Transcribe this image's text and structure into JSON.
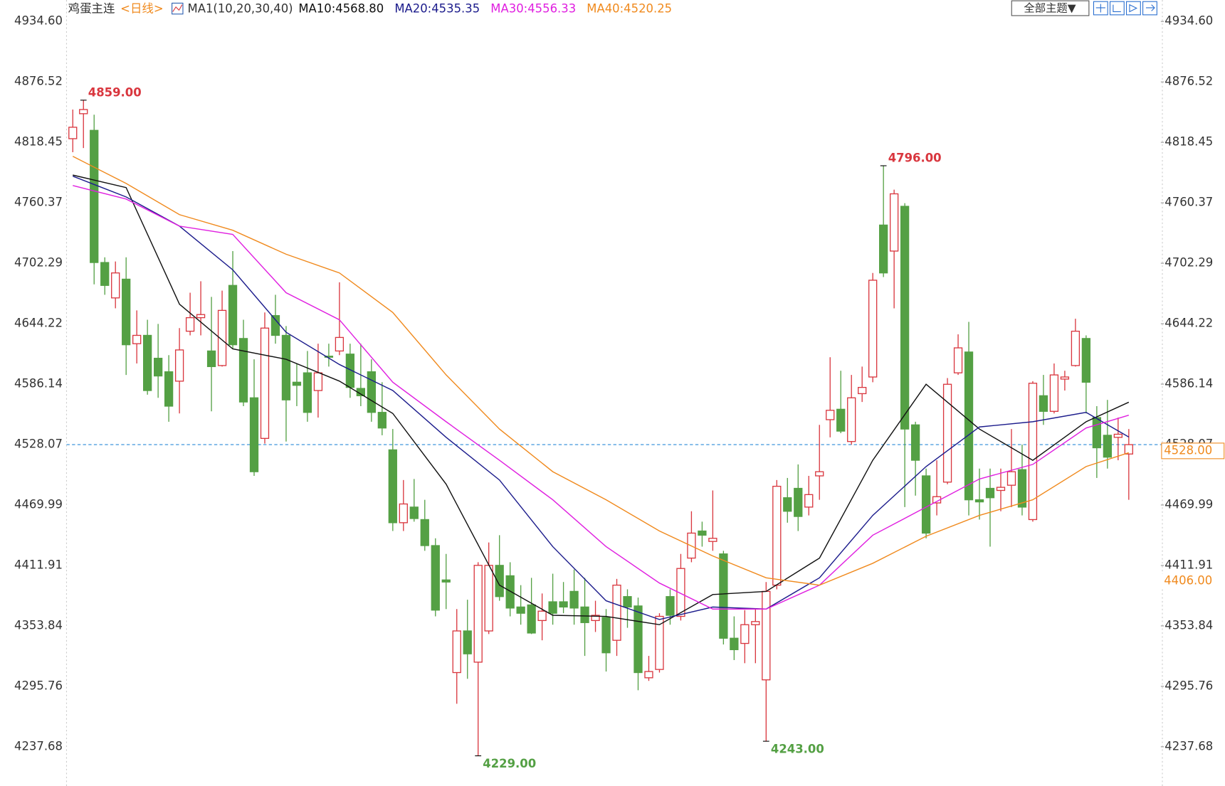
{
  "toolbar": {
    "theme_button": "全部主题▼"
  },
  "chart_data": {
    "type": "candlestick",
    "title": "鸡蛋主连",
    "period": "<日线>",
    "indicator": "MA1(10,20,30,40)",
    "up_color": "#d9363e",
    "down_color": "#54a044",
    "open": [
      4822,
      4846,
      4830,
      4703,
      4669,
      4687,
      4625,
      4633,
      4611,
      4598,
      4589,
      4637,
      4650,
      4618,
      4604,
      4681,
      4630,
      4573,
      4534,
      4652,
      4633,
      4588,
      4597,
      4580,
      4613,
      4618,
      4615,
      4582,
      4598,
      4559,
      4523,
      4453,
      4468,
      4456,
      4431,
      4398,
      4309,
      4349,
      4319,
      4349,
      4412,
      4402,
      4372,
      4374,
      4359,
      4377,
      4377,
      4387,
      4372,
      4359,
      4362,
      4340,
      4382,
      4373,
      4304,
      4312,
      4382,
      4363,
      4419,
      4445,
      4435,
      4423,
      4342,
      4337,
      4355,
      4302,
      4393,
      4477,
      4486,
      4468,
      4498,
      4552,
      4562,
      4531,
      4577,
      4593,
      4739,
      4714,
      4757,
      4547,
      4498,
      4472,
      4492,
      4597,
      4617,
      4475,
      4486,
      4484,
      4489,
      4504,
      4456,
      4575,
      4560,
      4591,
      4604,
      4630,
      4554,
      4537,
      4535,
      4519
    ],
    "high": [
      4850,
      4859,
      4845,
      4708,
      4704,
      4708,
      4657,
      4648,
      4644,
      4614,
      4640,
      4674,
      4685,
      4670,
      4676,
      4714,
      4648,
      4610,
      4655,
      4672,
      4642,
      4606,
      4618,
      4625,
      4625,
      4684,
      4625,
      4625,
      4610,
      4588,
      4543,
      4494,
      4495,
      4475,
      4438,
      4423,
      4370,
      4379,
      4415,
      4434,
      4441,
      4415,
      4393,
      4400,
      4385,
      4404,
      4396,
      4408,
      4400,
      4378,
      4370,
      4399,
      4389,
      4381,
      4325,
      4366,
      4389,
      4423,
      4464,
      4454,
      4484,
      4426,
      4363,
      4369,
      4370,
      4396,
      4494,
      4496,
      4509,
      4498,
      4547,
      4612,
      4599,
      4595,
      4603,
      4693,
      4796,
      4773,
      4760,
      4550,
      4505,
      4513,
      4592,
      4634,
      4646,
      4505,
      4505,
      4505,
      4543,
      4528,
      4589,
      4595,
      4606,
      4599,
      4649,
      4633,
      4565,
      4571,
      4554,
      4543
    ],
    "low": [
      4809,
      4813,
      4682,
      4672,
      4659,
      4595,
      4606,
      4576,
      4573,
      4550,
      4558,
      4633,
      4633,
      4560,
      4603,
      4620,
      4565,
      4498,
      4529,
      4625,
      4531,
      4565,
      4550,
      4554,
      4603,
      4614,
      4573,
      4565,
      4550,
      4537,
      4445,
      4445,
      4454,
      4426,
      4363,
      4370,
      4279,
      4303,
      4229,
      4346,
      4378,
      4363,
      4355,
      4346,
      4340,
      4355,
      4366,
      4355,
      4325,
      4348,
      4310,
      4325,
      4352,
      4292,
      4301,
      4309,
      4355,
      4359,
      4415,
      4430,
      4426,
      4336,
      4321,
      4318,
      4318,
      4243,
      4389,
      4453,
      4445,
      4460,
      4475,
      4535,
      4539,
      4528,
      4569,
      4588,
      4689,
      4659,
      4468,
      4479,
      4438,
      4460,
      4490,
      4595,
      4460,
      4456,
      4430,
      4464,
      4468,
      4460,
      4454,
      4547,
      4558,
      4580,
      4603,
      4558,
      4496,
      4505,
      4513,
      4475
    ],
    "close": [
      4833,
      4850,
      4703,
      4681,
      4693,
      4624,
      4633,
      4580,
      4594,
      4565,
      4619,
      4650,
      4653,
      4603,
      4657,
      4624,
      4569,
      4502,
      4640,
      4633,
      4571,
      4585,
      4559,
      4597,
      4612,
      4631,
      4583,
      4575,
      4559,
      4544,
      4453,
      4471,
      4457,
      4431,
      4369,
      4396,
      4349,
      4327,
      4412,
      4412,
      4382,
      4371,
      4366,
      4347,
      4368,
      4366,
      4372,
      4371,
      4357,
      4364,
      4328,
      4393,
      4372,
      4309,
      4310,
      4363,
      4364,
      4409,
      4443,
      4441,
      4438,
      4342,
      4331,
      4355,
      4358,
      4387,
      4488,
      4464,
      4459,
      4480,
      4502,
      4561,
      4541,
      4573,
      4583,
      4686,
      4693,
      4769,
      4543,
      4513,
      4443,
      4478,
      4586,
      4621,
      4475,
      4473,
      4477,
      4487,
      4502,
      4468,
      4587,
      4560,
      4595,
      4593,
      4637,
      4588,
      4525,
      4516,
      4538,
      4528
    ],
    "ma_x": [
      0,
      5,
      10,
      15,
      20,
      25,
      30,
      35,
      40,
      45,
      50,
      55,
      60,
      65,
      70,
      75,
      80,
      85,
      90,
      95,
      99
    ],
    "series": [
      {
        "name": "MA10:4568.80",
        "color": "#111111",
        "values": [
          4787,
          4775,
          4663,
          4620,
          4610,
          4589,
          4558,
          4490,
          4393,
          4364,
          4363,
          4355,
          4384,
          4387,
          4419,
          4513,
          4586,
          4543,
          4513,
          4550,
          4568.8
        ]
      },
      {
        "name": "MA20:4535.35",
        "color": "#1c1c8c",
        "values": [
          4786,
          4766,
          4738,
          4696,
          4636,
          4605,
          4580,
          4535,
          4494,
          4430,
          4378,
          4360,
          4372,
          4370,
          4400,
          4460,
          4507,
          4545,
          4550,
          4559,
          4535.35
        ]
      },
      {
        "name": "MA30:4556.33",
        "color": "#e020e0",
        "values": [
          4777,
          4764,
          4738,
          4730,
          4674,
          4648,
          4588,
          4550,
          4513,
          4475,
          4430,
          4395,
          4370,
          4370,
          4393,
          4441,
          4468,
          4495,
          4509,
          4544,
          4556.33
        ]
      },
      {
        "name": "MA40:4520.25",
        "color": "#f08a1e",
        "values": [
          4805,
          4779,
          4749,
          4734,
          4711,
          4693,
          4655,
          4595,
          4543,
          4502,
          4475,
          4445,
          4421,
          4400,
          4393,
          4414,
          4440,
          4460,
          4475,
          4507,
          4520.25
        ]
      }
    ],
    "ylim": [
      4200,
      4955.25
    ],
    "yticks": [
      {
        "value": 4934.6,
        "label": "4934.60"
      },
      {
        "value": 4876.52,
        "label": "4876.52"
      },
      {
        "value": 4818.45,
        "label": "4818.45"
      },
      {
        "value": 4760.37,
        "label": "4760.37"
      },
      {
        "value": 4702.29,
        "label": "4702.29"
      },
      {
        "value": 4644.22,
        "label": "4644.22"
      },
      {
        "value": 4586.14,
        "label": "4586.14"
      },
      {
        "value": 4528.07,
        "label": "4528.07"
      },
      {
        "value": 4469.99,
        "label": "4469.99"
      },
      {
        "value": 4411.91,
        "label": "4411.91"
      },
      {
        "value": 4353.84,
        "label": "4353.84"
      },
      {
        "value": 4295.76,
        "label": "4295.76"
      },
      {
        "value": 4237.68,
        "label": "4237.68"
      }
    ],
    "last_price": {
      "value": 4528,
      "label": "4528.00",
      "color": "#f08a1e",
      "line_color": "#2a8bd8"
    },
    "marker": {
      "value": 4406,
      "label": "4406.00",
      "color": "#f08a1e"
    },
    "annotations": [
      {
        "value": 4859,
        "label": "4859.00",
        "color": "#d9363e"
      },
      {
        "value": 4796,
        "label": "4796.00",
        "color": "#d9363e"
      },
      {
        "value": 4229,
        "label": "4229.00",
        "color": "#54a044"
      },
      {
        "value": 4243,
        "label": "4243.00",
        "color": "#54a044"
      }
    ]
  }
}
